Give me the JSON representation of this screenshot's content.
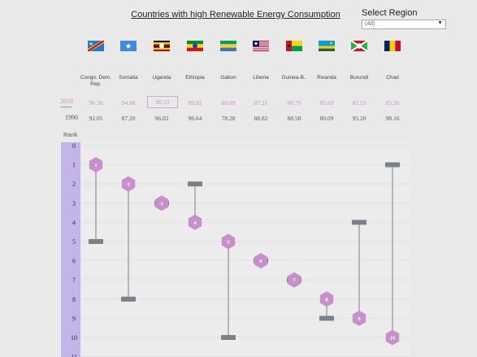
{
  "title": "Countries with high Renewable Energy Consumption",
  "region": {
    "label": "Select Region",
    "value": "(All)"
  },
  "years": {
    "recent": "2018",
    "separator": "--------",
    "base": "1990"
  },
  "rank_label": "Rank",
  "countries": [
    {
      "name": "Congo, Dem. Rep.",
      "flag": "flag-congo-drc-icon",
      "v2018": "96.38",
      "v1990": "92.05",
      "rank2018": 1,
      "rank1990": 5
    },
    {
      "name": "Somalia",
      "flag": "flag-somalia-icon",
      "v2018": "94.88",
      "v1990": "87.20",
      "rank2018": 2,
      "rank1990": 8
    },
    {
      "name": "Uganda",
      "flag": "flag-uganda-icon",
      "v2018": "90.33",
      "v1990": "96.02",
      "rank2018": 3,
      "rank1990": 3,
      "highlighted": true
    },
    {
      "name": "Ethiopia",
      "flag": "flag-ethiopia-icon",
      "v2018": "89.92",
      "v1990": "96.64",
      "rank2018": 4,
      "rank1990": 2
    },
    {
      "name": "Gabon",
      "flag": "flag-gabon-icon",
      "v2018": "89.89",
      "v1990": "78.28",
      "rank2018": 5,
      "rank1990": 10
    },
    {
      "name": "Liberia",
      "flag": "flag-liberia-icon",
      "v2018": "87.21",
      "v1990": "88.82",
      "rank2018": 6,
      "rank1990": 6
    },
    {
      "name": "Guinea-B..",
      "flag": "flag-guinea-bissau-icon",
      "v2018": "86.79",
      "v1990": "88.58",
      "rank2018": 7,
      "rank1990": 7
    },
    {
      "name": "Rwanda",
      "flag": "flag-rwanda-icon",
      "v2018": "85.69",
      "v1990": "80.09",
      "rank2018": 8,
      "rank1990": 9
    },
    {
      "name": "Burundi",
      "flag": "flag-burundi-icon",
      "v2018": "85.53",
      "v1990": "95.20",
      "rank2018": 9,
      "rank1990": 4
    },
    {
      "name": "Chad",
      "flag": "flag-chad-icon",
      "v2018": "85.26",
      "v1990": "98.16",
      "rank2018": 10,
      "rank1990": 1
    }
  ],
  "chart_data": {
    "type": "dumbbell",
    "xlabel": "",
    "ylabel": "Rank",
    "y_ticks": [
      "0",
      "1",
      "2",
      "3",
      "4",
      "5",
      "6",
      "7",
      "8",
      "9",
      "10",
      "11"
    ],
    "ylim": [
      0,
      11
    ],
    "categories": [
      "Congo, Dem. Rep.",
      "Somalia",
      "Uganda",
      "Ethiopia",
      "Gabon",
      "Liberia",
      "Guinea-B..",
      "Rwanda",
      "Burundi",
      "Chad"
    ],
    "series": [
      {
        "marker": "hexagon",
        "values": [
          1,
          2,
          3,
          4,
          5,
          6,
          7,
          8,
          9,
          10
        ]
      },
      {
        "marker": "bar",
        "values": [
          5,
          8,
          3,
          2,
          10,
          6,
          7,
          9,
          4,
          1
        ]
      }
    ],
    "grid": true
  },
  "colors": {
    "hexagon": "#c98fcb",
    "bar": "#7b8189",
    "connector": "#b5b5b5",
    "rank_strip": "#c3b4ea",
    "value_2018": "#c98fcb"
  }
}
